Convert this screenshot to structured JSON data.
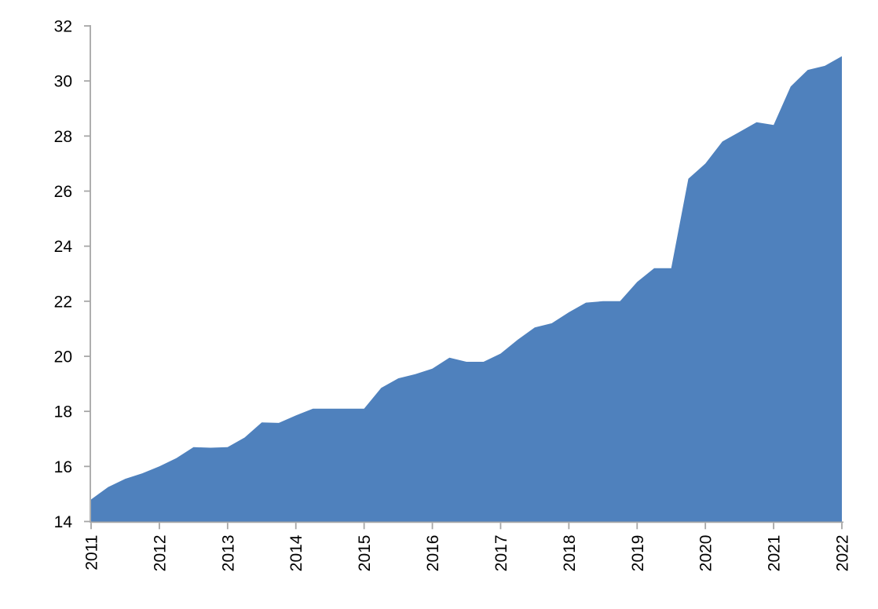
{
  "chart_data": {
    "type": "area",
    "title": "",
    "xlabel": "",
    "ylabel": "",
    "grid": false,
    "legend": "none",
    "xlim": [
      2011,
      2022
    ],
    "ylim": [
      14,
      32
    ],
    "x_tick_labels": [
      "2011",
      "2012",
      "2013",
      "2014",
      "2015",
      "2016",
      "2017",
      "2018",
      "2019",
      "2020",
      "2021",
      "2022"
    ],
    "x_ticks": [
      2011,
      2012,
      2013,
      2014,
      2015,
      2016,
      2017,
      2018,
      2019,
      2020,
      2021,
      2022
    ],
    "y_tick_labels": [
      "14",
      "16",
      "18",
      "20",
      "22",
      "24",
      "26",
      "28",
      "30",
      "32"
    ],
    "y_ticks": [
      14,
      16,
      18,
      20,
      22,
      24,
      26,
      28,
      30,
      32
    ],
    "x_frequency": "quarterly",
    "x": [
      2011.0,
      2011.25,
      2011.5,
      2011.75,
      2012.0,
      2012.25,
      2012.5,
      2012.75,
      2013.0,
      2013.25,
      2013.5,
      2013.75,
      2014.0,
      2014.25,
      2014.5,
      2014.75,
      2015.0,
      2015.25,
      2015.5,
      2015.75,
      2016.0,
      2016.25,
      2016.5,
      2016.75,
      2017.0,
      2017.25,
      2017.5,
      2017.75,
      2018.0,
      2018.25,
      2018.5,
      2018.75,
      2019.0,
      2019.25,
      2019.5,
      2019.75,
      2020.0,
      2020.25,
      2020.5,
      2020.75,
      2021.0,
      2021.25,
      2021.5,
      2021.75,
      2022.0
    ],
    "values": [
      14.8,
      15.25,
      15.55,
      15.75,
      16.0,
      16.3,
      16.7,
      16.68,
      16.7,
      17.05,
      17.6,
      17.58,
      17.85,
      18.1,
      18.1,
      18.1,
      18.1,
      18.85,
      19.2,
      19.35,
      19.55,
      19.95,
      19.8,
      19.8,
      20.1,
      20.6,
      21.05,
      21.2,
      21.6,
      21.95,
      22.0,
      22.0,
      22.7,
      23.2,
      23.2,
      26.45,
      27.0,
      27.8,
      28.15,
      28.5,
      28.4,
      29.8,
      30.4,
      30.55,
      30.9
    ],
    "colors": {
      "area_fill": "#4F81BD",
      "axis_line": "#A6A6A6",
      "tick_mark": "#A6A6A6",
      "tick_label": "#000000",
      "background": "#FFFFFF"
    }
  }
}
